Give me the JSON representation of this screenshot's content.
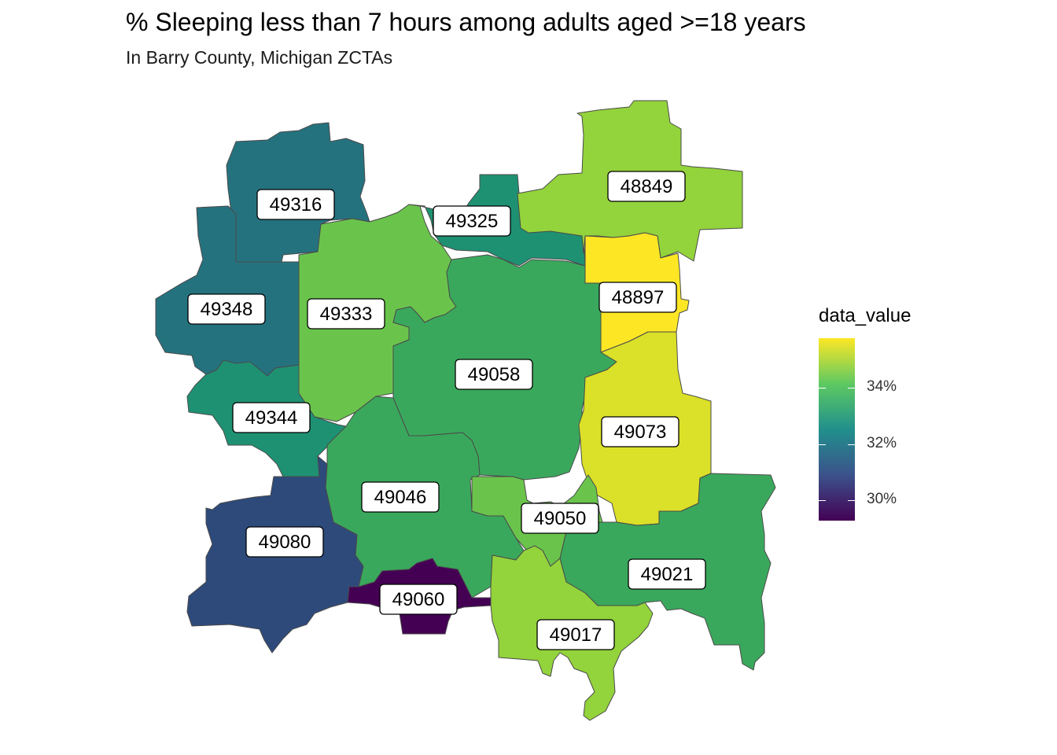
{
  "title": "% Sleeping less than 7 hours among adults aged >=18 years",
  "subtitle": "In Barry County, Michigan ZCTAs",
  "legend": {
    "title": "data_value",
    "ticks": [
      "34%",
      "32%",
      "30%"
    ]
  },
  "colors": {
    "c_29_5": "#440154",
    "c_31": "#2d4a7b",
    "c_32": "#25727f",
    "c_32_5": "#1f9173",
    "c_33_5": "#3aa85c",
    "c_34_5": "#6ac44c",
    "c_35_5": "#93d33b",
    "c_36_5": "#dbe028",
    "c_37": "#fde725"
  },
  "regions": [
    {
      "zcta": "49316",
      "label": "49316",
      "value": 32.0
    },
    {
      "zcta": "49325",
      "label": "49325",
      "value": 32.5
    },
    {
      "zcta": "48849",
      "label": "48849",
      "value": 35.5
    },
    {
      "zcta": "49348",
      "label": "49348",
      "value": 32.0
    },
    {
      "zcta": "49333",
      "label": "49333",
      "value": 34.5
    },
    {
      "zcta": "48897",
      "label": "48897",
      "value": 37.0
    },
    {
      "zcta": "49058",
      "label": "49058",
      "value": 33.5
    },
    {
      "zcta": "49344",
      "label": "49344",
      "value": 32.5
    },
    {
      "zcta": "49073",
      "label": "49073",
      "value": 36.5
    },
    {
      "zcta": "49046",
      "label": "49046",
      "value": 33.5
    },
    {
      "zcta": "49050",
      "label": "49050",
      "value": 34.5
    },
    {
      "zcta": "49080",
      "label": "49080",
      "value": 31.0
    },
    {
      "zcta": "49021",
      "label": "49021",
      "value": 33.5
    },
    {
      "zcta": "49060",
      "label": "49060",
      "value": 29.5
    },
    {
      "zcta": "49017",
      "label": "49017",
      "value": 35.5
    }
  ]
}
